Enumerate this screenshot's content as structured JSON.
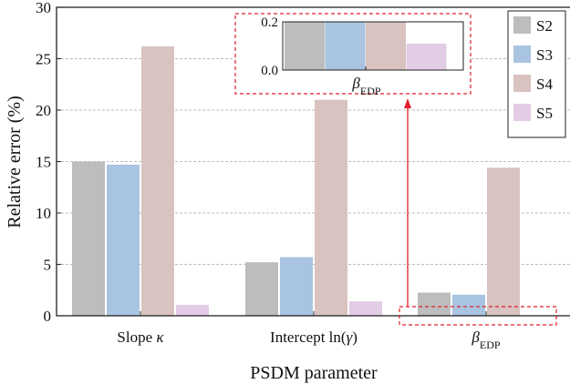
{
  "chart_data": [
    {
      "type": "bar",
      "xlabel": "PSDM parameter",
      "ylabel": "Relative error (%)",
      "ylim": [
        0,
        30
      ],
      "yticks": [
        "0",
        "5",
        "10",
        "15",
        "20",
        "25",
        "30"
      ],
      "grid": "horizontal dashed",
      "legend_position": "top-right",
      "categories": [
        {
          "pre": "Slope ",
          "sym": "κ",
          "sub": ""
        },
        {
          "pre": "Intercept ln(",
          "sym": "γ",
          "post": ")",
          "sub": ""
        },
        {
          "pre": "",
          "sym": "β",
          "sub": "EDP"
        }
      ],
      "series": [
        {
          "name": "S2",
          "color": "#bdbdbd",
          "values": [
            15.0,
            5.2,
            2.25
          ]
        },
        {
          "name": "S3",
          "color": "#a9c4e1",
          "values": [
            14.7,
            5.7,
            2.05
          ]
        },
        {
          "name": "S4",
          "color": "#d9c3c1",
          "values": [
            26.2,
            21.0,
            14.4
          ]
        },
        {
          "name": "S5",
          "color": "#e3cce5",
          "values": [
            1.05,
            1.4,
            0
          ]
        }
      ]
    },
    {
      "type": "bar",
      "role": "inset",
      "ylim": [
        0,
        0.2
      ],
      "yticks": [
        "0.0",
        "0.2"
      ],
      "xlabel_sym": "β",
      "xlabel_sub": "EDP",
      "values": [
        0.2,
        0.2,
        0.2,
        0.11
      ],
      "colors": [
        "#bdbdbd",
        "#a9c4e1",
        "#d9c3c1",
        "#e3cce5"
      ]
    }
  ],
  "annotation": {
    "highlight_color": "#e0202a"
  }
}
